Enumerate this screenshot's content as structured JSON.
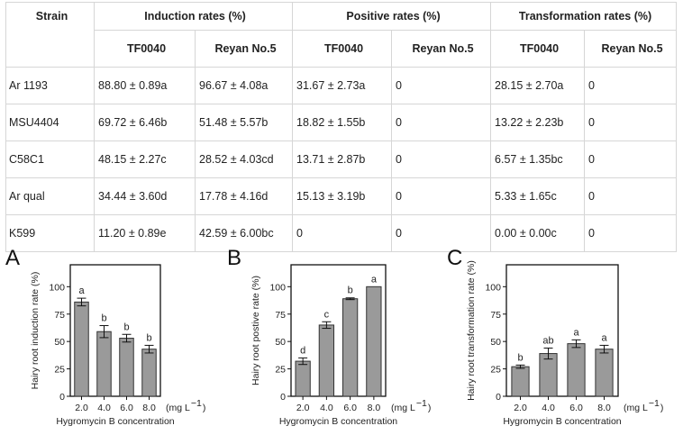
{
  "table": {
    "strain_header": "Strain",
    "groups": [
      "Induction rates (%)",
      "Positive rates (%)",
      "Transformation rates (%)"
    ],
    "subheaders": [
      "TF0040",
      "Reyan No.5",
      "TF0040",
      "Reyan No.5",
      "TF0040",
      "Reyan No.5"
    ],
    "rows": [
      {
        "strain": "Ar 1193",
        "cells": [
          "88.80 ± 0.89a",
          "96.67 ± 4.08a",
          "31.67 ± 2.73a",
          "0",
          "28.15 ± 2.70a",
          "0"
        ]
      },
      {
        "strain": "MSU4404",
        "cells": [
          "69.72 ± 6.46b",
          "51.48 ± 5.57b",
          "18.82 ± 1.55b",
          "0",
          "13.22 ± 2.23b",
          "0"
        ]
      },
      {
        "strain": "C58C1",
        "cells": [
          "48.15 ± 2.27c",
          "28.52 ± 4.03cd",
          "13.71 ± 2.87b",
          "0",
          "6.57 ± 1.35bc",
          "0"
        ]
      },
      {
        "strain": "Ar qual",
        "cells": [
          "34.44 ± 3.60d",
          "17.78 ± 4.16d",
          "15.13 ± 3.19b",
          "0",
          "5.33 ± 1.65c",
          "0"
        ]
      },
      {
        "strain": "K599",
        "cells": [
          "11.20 ± 0.89e",
          "42.59 ± 6.00bc",
          "0",
          "0",
          "0.00 ± 0.00c",
          "0"
        ]
      }
    ]
  },
  "chart_data": [
    {
      "type": "bar",
      "panel_label": "A",
      "categories": [
        "2.0",
        "4.0",
        "6.0",
        "8.0"
      ],
      "values": [
        86,
        59,
        53,
        43
      ],
      "errors": [
        3.5,
        5.5,
        3.5,
        3.5
      ],
      "significance": [
        "a",
        "b",
        "b",
        "b"
      ],
      "ylabel": "Hairy root induction rate (%)",
      "xlabel": "Hygromycin B concentration",
      "x_unit": "(mg L",
      "x_unit_sup": "−1",
      "x_unit_close": ")",
      "ylim": [
        0,
        120
      ],
      "yticks": [
        "0",
        "25",
        "50",
        "75",
        "100"
      ],
      "bar_color": "#9a9a9a",
      "grid": false
    },
    {
      "type": "bar",
      "panel_label": "B",
      "categories": [
        "2.0",
        "4.0",
        "6.0",
        "8.0"
      ],
      "values": [
        32,
        65,
        89,
        100
      ],
      "errors": [
        3,
        3,
        0.8,
        0
      ],
      "significance": [
        "d",
        "c",
        "b",
        "a"
      ],
      "ylabel": "Hairy root postive rate (%)",
      "xlabel": "Hygromycin B concentration",
      "x_unit": "(mg L",
      "x_unit_sup": "−1",
      "x_unit_close": ")",
      "ylim": [
        0,
        120
      ],
      "yticks": [
        "0",
        "25",
        "50",
        "75",
        "100"
      ],
      "bar_color": "#9a9a9a",
      "grid": false
    },
    {
      "type": "bar",
      "panel_label": "C",
      "categories": [
        "2.0",
        "4.0",
        "6.0",
        "8.0"
      ],
      "values": [
        27,
        39,
        48,
        43
      ],
      "errors": [
        1.5,
        5,
        3.5,
        3.5
      ],
      "significance": [
        "b",
        "ab",
        "a",
        "a"
      ],
      "ylabel": "Hairy root transformation rate (%)",
      "xlabel": "Hygromycin B concentration",
      "x_unit": "(mg L",
      "x_unit_sup": "−1",
      "x_unit_close": ")",
      "ylim": [
        0,
        120
      ],
      "yticks": [
        "0",
        "25",
        "50",
        "75",
        "100"
      ],
      "bar_color": "#9a9a9a",
      "grid": false
    }
  ]
}
